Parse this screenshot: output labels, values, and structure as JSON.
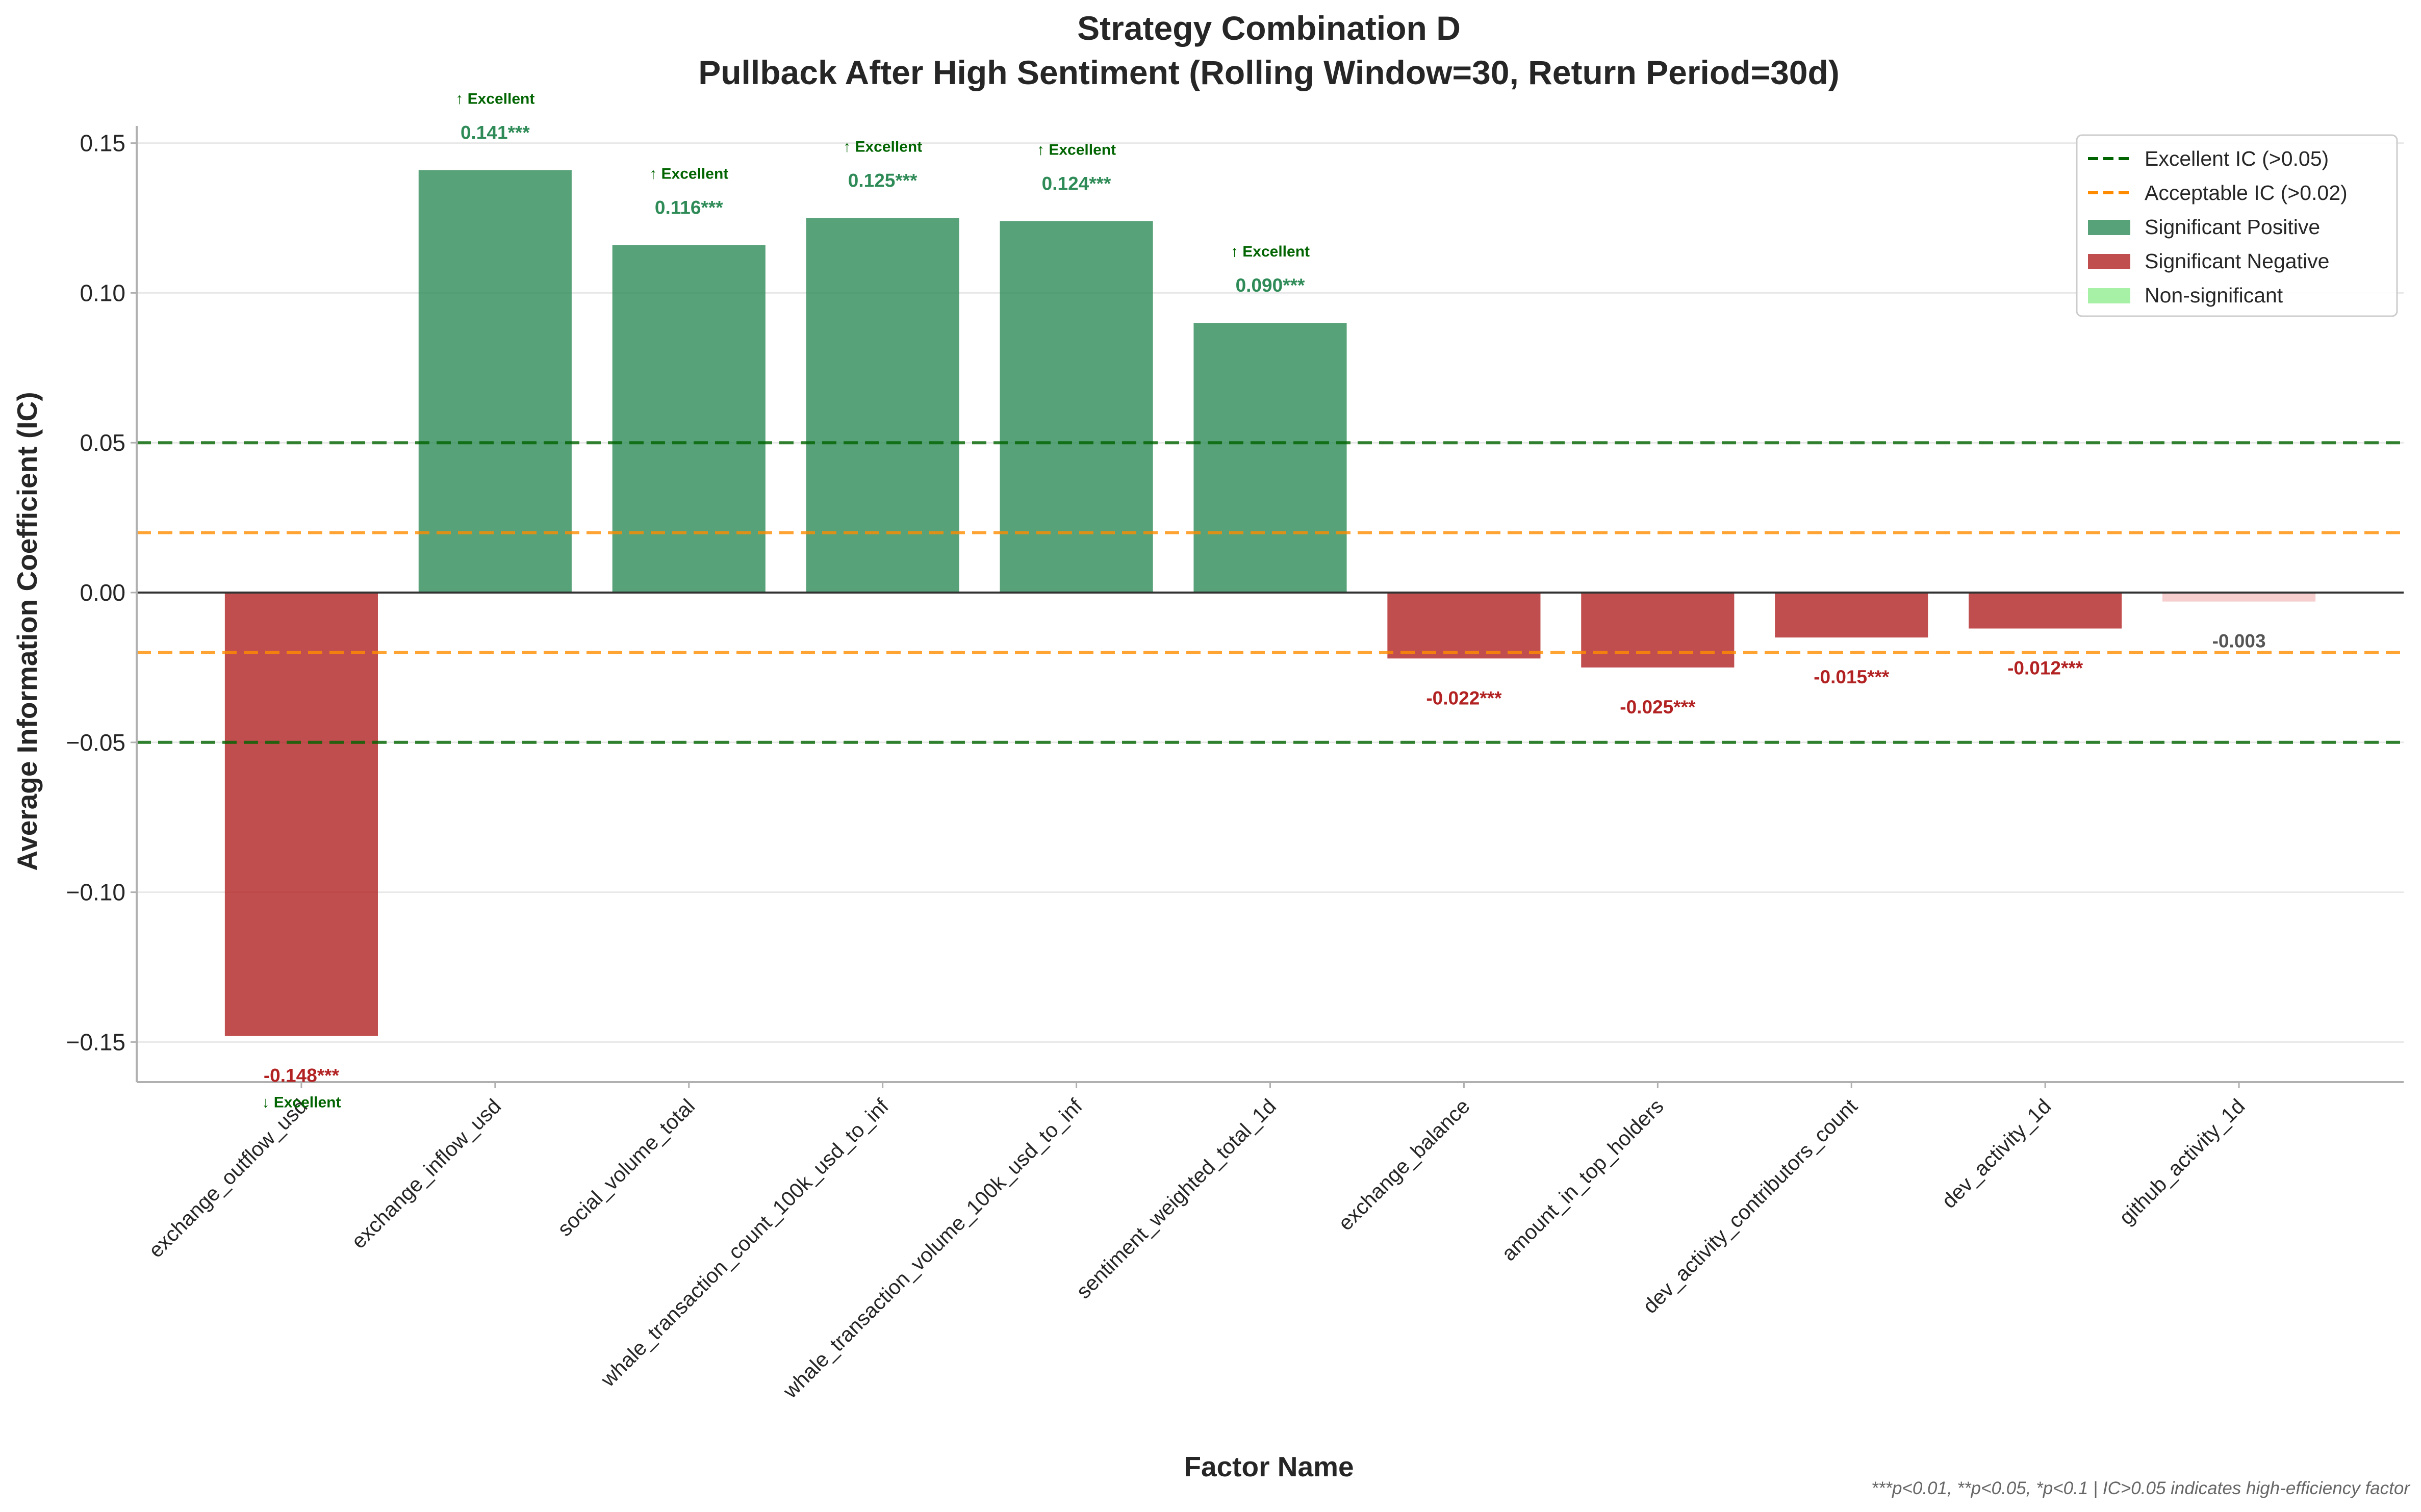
{
  "chart_data": {
    "type": "bar",
    "title_line1": "Strategy Combination D",
    "title_line2": "Pullback After High Sentiment (Rolling Window=30, Return Period=30d)",
    "xlabel": "Factor Name",
    "ylabel": "Average Information Coefficient (IC)",
    "ylim": [
      -0.162,
      0.155
    ],
    "yticks": [
      -0.15,
      -0.1,
      -0.05,
      0.0,
      0.05,
      0.1,
      0.15
    ],
    "ytick_labels": [
      "−0.15",
      "−0.10",
      "−0.05",
      "0.00",
      "0.05",
      "0.10",
      "0.15"
    ],
    "grid": true,
    "legend_position": "top-right",
    "categories": [
      "exchange_outflow_usd",
      "exchange_inflow_usd",
      "social_volume_total",
      "whale_transaction_count_100k_usd_to_inf",
      "whale_transaction_volume_100k_usd_to_inf",
      "sentiment_weighted_total_1d",
      "exchange_balance",
      "amount_in_top_holders",
      "dev_activity_contributors_count",
      "dev_activity_1d",
      "github_activity_1d"
    ],
    "values": [
      -0.148,
      0.141,
      0.116,
      0.125,
      0.124,
      0.09,
      -0.022,
      -0.025,
      -0.015,
      -0.012,
      -0.003
    ],
    "value_labels": [
      "-0.148***",
      "0.141***",
      "0.116***",
      "0.125***",
      "0.124***",
      "0.090***",
      "-0.022***",
      "-0.025***",
      "-0.015***",
      "-0.012***",
      "-0.003"
    ],
    "significance": [
      "negative",
      "positive",
      "positive",
      "positive",
      "positive",
      "positive",
      "negative",
      "negative",
      "negative",
      "negative",
      "nonsig-negative"
    ],
    "excellent_labels": [
      "↓ Excellent",
      "↑ Excellent",
      "↑ Excellent",
      "↑ Excellent",
      "↑ Excellent",
      "↑ Excellent",
      "",
      "",
      "",
      "",
      ""
    ],
    "reference_lines": [
      {
        "value": 0.05,
        "color": "#006400",
        "name": "Excellent IC (>0.05)"
      },
      {
        "value": -0.05,
        "color": "#006400",
        "name": ""
      },
      {
        "value": 0.02,
        "color": "#FF8C00",
        "name": "Acceptable IC (>0.02)"
      },
      {
        "value": -0.02,
        "color": "#FF8C00",
        "name": ""
      }
    ],
    "colors": {
      "positive": "#2E8B57",
      "negative": "#B22222",
      "nonsig_negative": "#F4C2C2",
      "nonsig": "#90EE90",
      "excellent_line": "#006400",
      "acceptable_line": "#FF8C00",
      "pos_text": "#2E8B57",
      "neg_text": "#B22222",
      "nonsig_text": "#555555"
    },
    "legend": [
      {
        "label": "Excellent IC (>0.05)",
        "kind": "line",
        "color": "#006400"
      },
      {
        "label": "Acceptable IC (>0.02)",
        "kind": "line",
        "color": "#FF8C00"
      },
      {
        "label": "Significant Positive",
        "kind": "patch",
        "color": "#2E8B57"
      },
      {
        "label": "Significant Negative",
        "kind": "patch",
        "color": "#B22222"
      },
      {
        "label": "Non-significant",
        "kind": "patch",
        "color": "#90EE90"
      }
    ],
    "footnote": "***p<0.01, **p<0.05, *p<0.1 | IC>0.05 indicates high-efficiency factor"
  }
}
